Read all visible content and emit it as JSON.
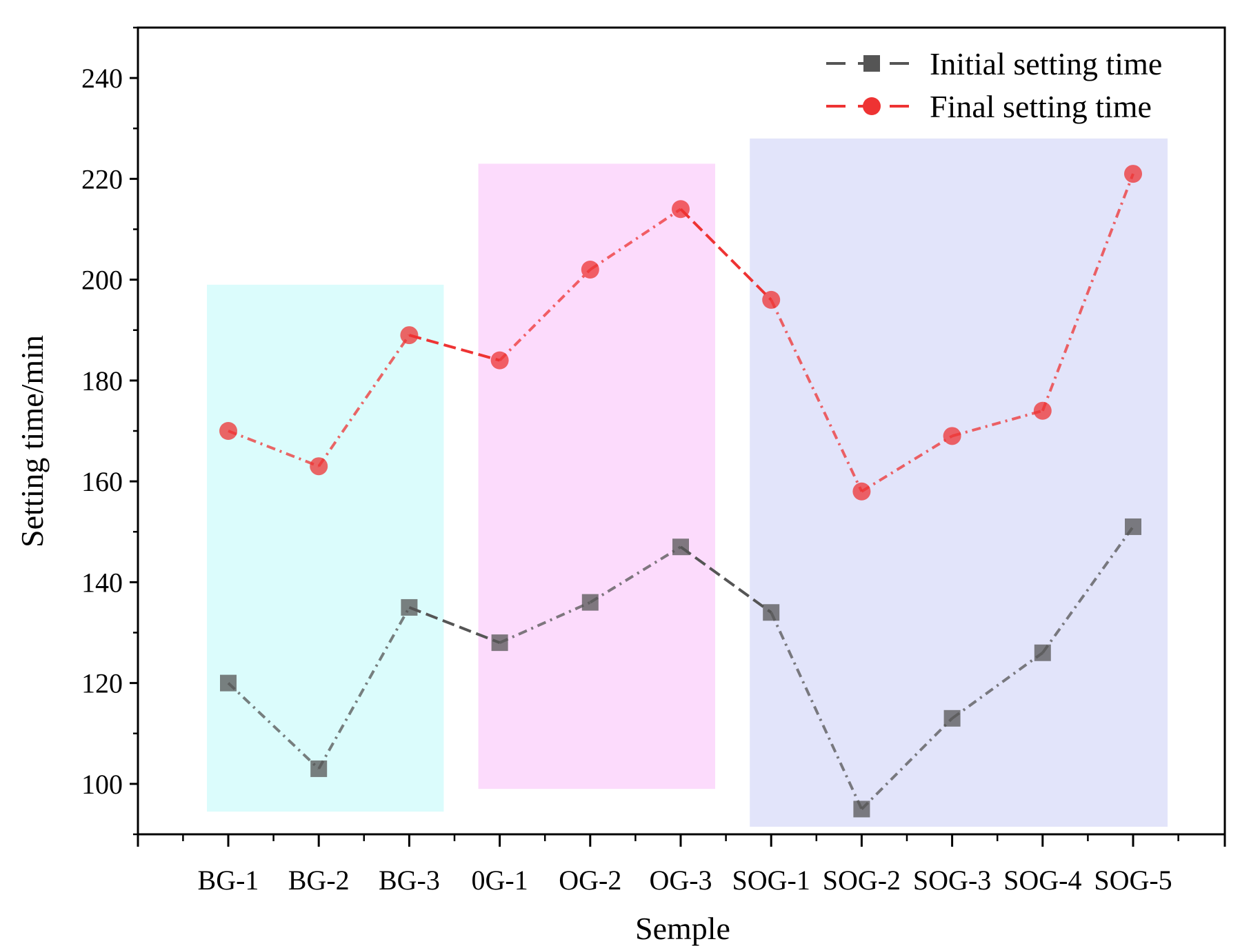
{
  "chart_data": {
    "type": "line",
    "title": "",
    "xlabel": "Semple",
    "ylabel": "Setting time/min",
    "categories": [
      "BG-1",
      "BG-2",
      "BG-3",
      "0G-1",
      "OG-2",
      "OG-3",
      "SOG-1",
      "SOG-2",
      "SOG-3",
      "SOG-4",
      "SOG-5"
    ],
    "ylim": [
      90,
      250
    ],
    "yticks": [
      100,
      120,
      140,
      160,
      180,
      200,
      220,
      240
    ],
    "grid": false,
    "legend_position": "top-right",
    "series": [
      {
        "name": "Initial setting time",
        "marker": "square",
        "color": "#555555",
        "values": [
          120,
          103,
          135,
          128,
          136,
          147,
          134,
          95,
          113,
          126,
          151
        ]
      },
      {
        "name": "Final setting time",
        "marker": "circle",
        "color": "#ee3333",
        "values": [
          170,
          163,
          189,
          184,
          202,
          214,
          196,
          158,
          169,
          174,
          221
        ]
      }
    ],
    "highlight_regions": [
      {
        "categories": [
          "BG-1",
          "BG-2",
          "BG-3"
        ],
        "y_range": [
          94.5,
          199
        ],
        "color": "#c8fbfb"
      },
      {
        "categories": [
          "0G-1",
          "OG-2",
          "OG-3"
        ],
        "y_range": [
          99,
          223
        ],
        "color": "#fbc8fb"
      },
      {
        "categories": [
          "SOG-1",
          "SOG-2",
          "SOG-3",
          "SOG-4",
          "SOG-5"
        ],
        "y_range": [
          91.5,
          228
        ],
        "color": "#d2d5f8"
      }
    ]
  }
}
